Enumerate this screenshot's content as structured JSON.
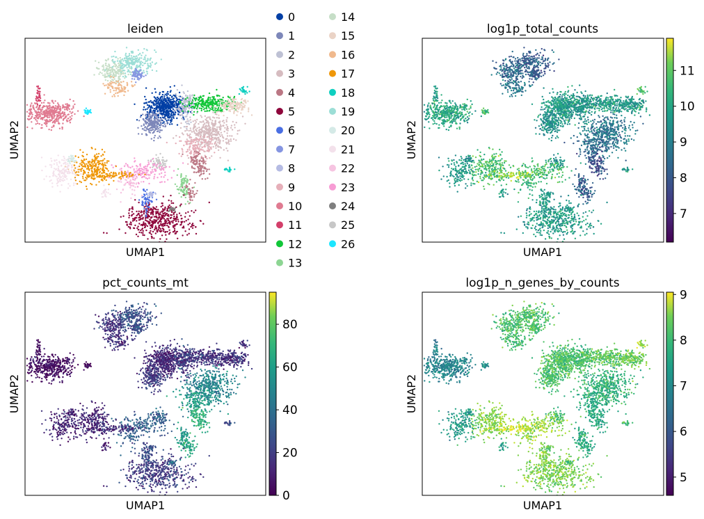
{
  "panels": [
    {
      "id": "leiden",
      "title": "leiden",
      "xlabel": "UMAP1",
      "ylabel": "UMAP2",
      "kind": "categorical"
    },
    {
      "id": "log1p_total_counts",
      "title": "log1p_total_counts",
      "xlabel": "UMAP1",
      "ylabel": "UMAP2",
      "kind": "continuous",
      "colorbar": {
        "ticks": [
          "7",
          "8",
          "9",
          "10",
          "11"
        ],
        "range": [
          6.2,
          11.9
        ]
      }
    },
    {
      "id": "pct_counts_mt",
      "title": "pct_counts_mt",
      "xlabel": "UMAP1",
      "ylabel": "UMAP2",
      "kind": "continuous",
      "colorbar": {
        "ticks": [
          "0",
          "20",
          "40",
          "60",
          "80"
        ],
        "range": [
          0,
          95
        ]
      }
    },
    {
      "id": "log1p_n_genes_by_counts",
      "title": "log1p_n_genes_by_counts",
      "xlabel": "UMAP1",
      "ylabel": "UMAP2",
      "kind": "continuous",
      "colorbar": {
        "ticks": [
          "5",
          "6",
          "7",
          "8",
          "9"
        ],
        "range": [
          4.6,
          9.05
        ]
      }
    }
  ],
  "legend": {
    "items": [
      {
        "label": "0",
        "color": "#023fa5"
      },
      {
        "label": "1",
        "color": "#7d87b9"
      },
      {
        "label": "2",
        "color": "#bec1d4"
      },
      {
        "label": "3",
        "color": "#d6bcc0"
      },
      {
        "label": "4",
        "color": "#bb7784"
      },
      {
        "label": "5",
        "color": "#8e063b"
      },
      {
        "label": "6",
        "color": "#4a6fe3"
      },
      {
        "label": "7",
        "color": "#8595e1"
      },
      {
        "label": "8",
        "color": "#b5bbe3"
      },
      {
        "label": "9",
        "color": "#e6afb9"
      },
      {
        "label": "10",
        "color": "#e07b91"
      },
      {
        "label": "11",
        "color": "#d33f6a"
      },
      {
        "label": "12",
        "color": "#11c638"
      },
      {
        "label": "13",
        "color": "#8dd593"
      },
      {
        "label": "14",
        "color": "#c6dec7"
      },
      {
        "label": "15",
        "color": "#ead3c6"
      },
      {
        "label": "16",
        "color": "#f0b98d"
      },
      {
        "label": "17",
        "color": "#ef9708"
      },
      {
        "label": "18",
        "color": "#0fcfc0"
      },
      {
        "label": "19",
        "color": "#9cded6"
      },
      {
        "label": "20",
        "color": "#d5eae7"
      },
      {
        "label": "21",
        "color": "#f3e1eb"
      },
      {
        "label": "22",
        "color": "#f6c4e1"
      },
      {
        "label": "23",
        "color": "#f79cd4"
      },
      {
        "label": "24",
        "color": "#7f7f7f"
      },
      {
        "label": "25",
        "color": "#c7c7c7"
      },
      {
        "label": "26",
        "color": "#1ce6ff"
      }
    ]
  },
  "colormap": "viridis",
  "chart_data": [
    {
      "type": "scatter",
      "title": "leiden",
      "xlabel": "UMAP1",
      "ylabel": "UMAP2",
      "color_by": "leiden",
      "categories": [
        "0",
        "1",
        "2",
        "3",
        "4",
        "5",
        "6",
        "7",
        "8",
        "9",
        "10",
        "11",
        "12",
        "13",
        "14",
        "15",
        "16",
        "17",
        "18",
        "19",
        "20",
        "21",
        "22",
        "23",
        "24",
        "25",
        "26"
      ],
      "clusters": [
        {
          "cluster": "0",
          "x": 6.2,
          "y": 6.6
        },
        {
          "cluster": "1",
          "x": 5.7,
          "y": 5.7
        },
        {
          "cluster": "2",
          "x": 7.2,
          "y": 6.9
        },
        {
          "cluster": "3",
          "x": 8.2,
          "y": 5.5
        },
        {
          "cluster": "4",
          "x": 8.2,
          "y": 3.6
        },
        {
          "cluster": "5",
          "x": 5.8,
          "y": 0.8
        },
        {
          "cluster": "6",
          "x": 5.3,
          "y": 1.9
        },
        {
          "cluster": "7",
          "x": 4.9,
          "y": 8.4
        },
        {
          "cluster": "8",
          "x": 5.5,
          "y": 2.2
        },
        {
          "cluster": "9",
          "x": 8.1,
          "y": 5.1
        },
        {
          "cluster": "10",
          "x": 0.9,
          "y": 6.4
        },
        {
          "cluster": "11",
          "x": 0.8,
          "y": 7.3
        },
        {
          "cluster": "12",
          "x": 8.2,
          "y": 7.0
        },
        {
          "cluster": "13",
          "x": 6.4,
          "y": 2.7
        },
        {
          "cluster": "14",
          "x": 3.8,
          "y": 8.6
        },
        {
          "cluster": "15",
          "x": 9.2,
          "y": 6.9
        },
        {
          "cluster": "16",
          "x": 4.0,
          "y": 7.7
        },
        {
          "cluster": "17",
          "x": 2.7,
          "y": 3.5
        },
        {
          "cluster": "18",
          "x": 9.1,
          "y": 3.5
        },
        {
          "cluster": "19",
          "x": 4.6,
          "y": 8.9
        },
        {
          "cluster": "20",
          "x": 1.9,
          "y": 4.1
        },
        {
          "cluster": "21",
          "x": 1.6,
          "y": 3.4
        },
        {
          "cluster": "22",
          "x": 4.6,
          "y": 2.9
        },
        {
          "cluster": "23",
          "x": 5.2,
          "y": 3.3
        },
        {
          "cluster": "24",
          "x": 6.5,
          "y": 1.4
        },
        {
          "cluster": "25",
          "x": 5.9,
          "y": 3.8
        },
        {
          "cluster": "26",
          "x": 2.5,
          "y": 6.5
        }
      ]
    },
    {
      "type": "scatter",
      "title": "log1p_total_counts",
      "xlabel": "UMAP1",
      "ylabel": "UMAP2",
      "color_by": "log1p_total_counts",
      "colorbar_ticks": [
        7,
        8,
        9,
        10,
        11
      ],
      "color_range": [
        6.2,
        11.9
      ]
    },
    {
      "type": "scatter",
      "title": "pct_counts_mt",
      "xlabel": "UMAP1",
      "ylabel": "UMAP2",
      "color_by": "pct_counts_mt",
      "colorbar_ticks": [
        0,
        20,
        40,
        60,
        80
      ],
      "color_range": [
        0,
        95
      ]
    },
    {
      "type": "scatter",
      "title": "log1p_n_genes_by_counts",
      "xlabel": "UMAP1",
      "ylabel": "UMAP2",
      "color_by": "log1p_n_genes_by_counts",
      "colorbar_ticks": [
        5,
        6,
        7,
        8,
        9
      ],
      "color_range": [
        4.6,
        9.05
      ]
    }
  ]
}
